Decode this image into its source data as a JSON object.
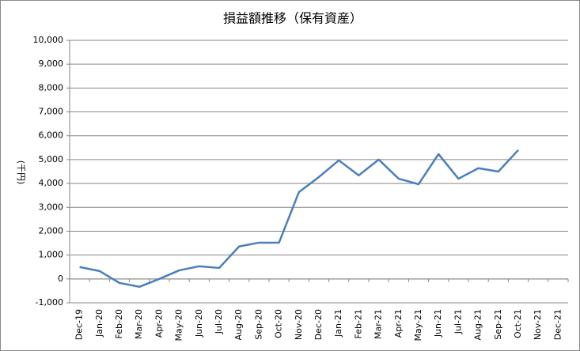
{
  "chart_data": {
    "type": "line",
    "title": "損益額推移（保有資産）",
    "y_label": "(千円)",
    "categories": [
      "Dec-19",
      "Jan-20",
      "Feb-20",
      "Mar-20",
      "Apr-20",
      "May-20",
      "Jun-20",
      "Jul-20",
      "Aug-20",
      "Sep-20",
      "Oct-20",
      "Nov-20",
      "Dec-20",
      "Jan-21",
      "Feb-21",
      "Mar-21",
      "Apr-21",
      "May-21",
      "Jun-21",
      "Jul-21",
      "Aug-21",
      "Sep-21",
      "Oct-21",
      "Nov-21",
      "Dec-21"
    ],
    "series": [
      {
        "name": "損益額",
        "color": "#4a7ebb",
        "values": [
          500,
          330,
          -170,
          -330,
          0,
          360,
          530,
          460,
          1360,
          1520,
          1520,
          3640,
          4270,
          4970,
          4340,
          5000,
          4200,
          3970,
          5230,
          4200,
          4640,
          4500,
          5400,
          null,
          null
        ]
      }
    ],
    "ylim": [
      -1000,
      10000
    ],
    "yticks": [
      {
        "value": -1000,
        "label": "-1,000"
      },
      0,
      {
        "value": 1000,
        "label": "1,000"
      },
      {
        "value": 2000,
        "label": "2,000"
      },
      {
        "value": 3000,
        "label": "3,000"
      },
      {
        "value": 4000,
        "label": "4,000"
      },
      {
        "value": 5000,
        "label": "5,000"
      },
      {
        "value": 6000,
        "label": "6,000"
      },
      {
        "value": 7000,
        "label": "7,000"
      },
      {
        "value": 8000,
        "label": "8,000"
      },
      {
        "value": 9000,
        "label": "9,000"
      },
      {
        "value": 10000,
        "label": "10,000"
      }
    ],
    "grid": true
  }
}
